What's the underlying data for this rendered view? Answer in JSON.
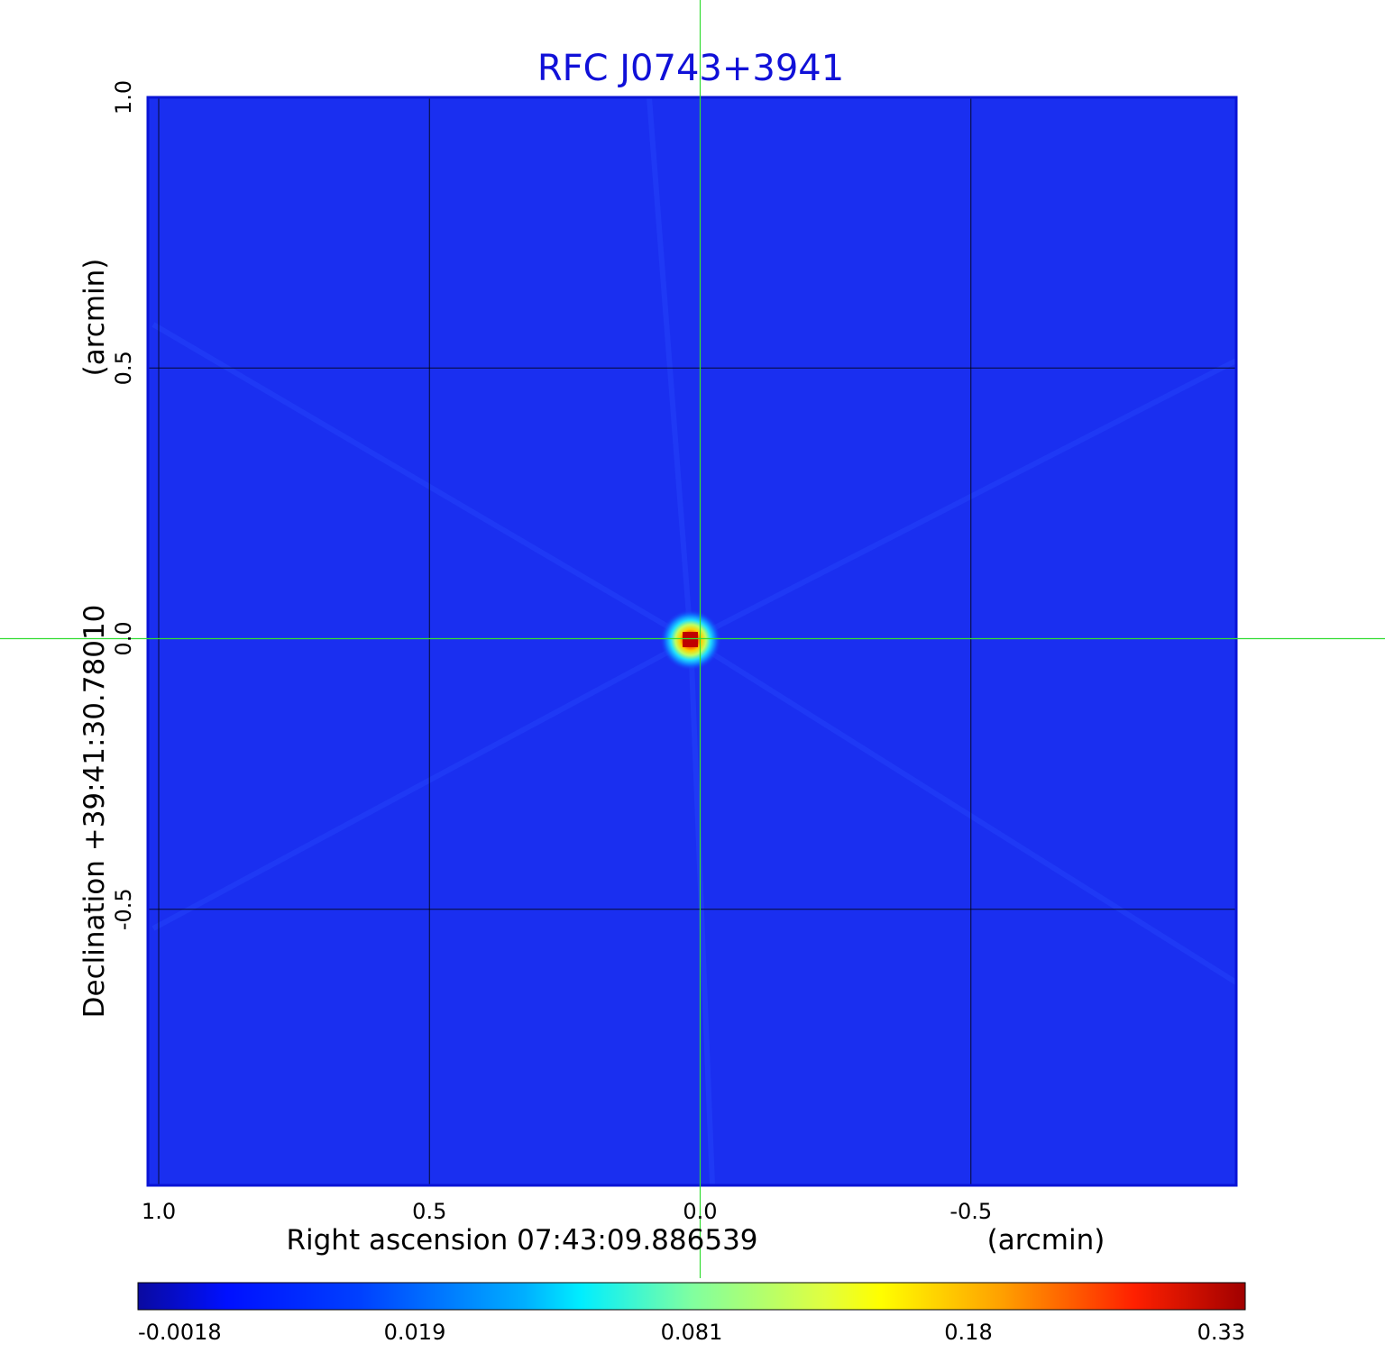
{
  "chart_data": {
    "type": "heatmap",
    "title": "RFC J0743+3941",
    "x_axis": {
      "label": "Right ascension  07:43:09.886539",
      "unit_label": "(arcmin)",
      "range": [
        1.02,
        -0.99
      ],
      "ticks": [
        {
          "value": 1.0,
          "label": "1.0"
        },
        {
          "value": 0.5,
          "label": "0.5"
        },
        {
          "value": 0.0,
          "label": "0.0"
        },
        {
          "value": -0.5,
          "label": "-0.5"
        }
      ],
      "grid": true
    },
    "y_axis": {
      "label": "Declination  +39:41:30.78010",
      "unit_label": "(arcmin)",
      "range": [
        -1.01,
        1.0
      ],
      "ticks": [
        {
          "value": 1.0,
          "label": "1.0"
        },
        {
          "value": 0.5,
          "label": "0.5"
        },
        {
          "value": 0.0,
          "label": "0.0"
        },
        {
          "value": -0.5,
          "label": "-0.5"
        }
      ],
      "grid": true
    },
    "crosshair": {
      "x": 0.0,
      "y": 0.0
    },
    "source": {
      "x": 0.0,
      "y": 0.0,
      "peak": 0.33
    },
    "colorbar": {
      "colormap": "jet",
      "ticks": [
        {
          "value": -0.0018,
          "label": "-0.0018"
        },
        {
          "value": 0.019,
          "label": "0.019"
        },
        {
          "value": 0.081,
          "label": "0.081"
        },
        {
          "value": 0.18,
          "label": "0.18"
        },
        {
          "value": 0.33,
          "label": "0.33"
        }
      ]
    }
  },
  "colors": {
    "title": "#1010d8",
    "frame": "#0a14d6",
    "background_field": "#1a2ff0",
    "grid": "#000000",
    "crosshair": "#33dd33"
  }
}
